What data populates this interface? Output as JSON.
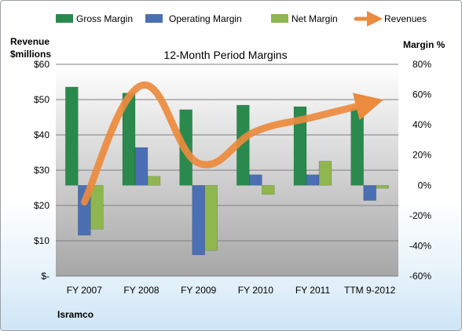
{
  "colors": {
    "gross_margin": "#2a8a4e",
    "operating_margin": "#4a6fb3",
    "net_margin": "#8fb64f",
    "revenues": "#ec8a3d",
    "plot_background_top": "#ffffff",
    "plot_background_bottom": "#a6a6a6"
  },
  "chart_data": {
    "type": "bar",
    "title": "12-Month Period Margins",
    "company": "Isramco",
    "y_left_label_line1": "Revenue",
    "y_left_label_line2": "$millions",
    "y_right_label": "Margin %",
    "categories": [
      "FY 2007",
      "FY 2008",
      "FY 2009",
      "FY 2010",
      "FY 2011",
      "TTM 9-2012"
    ],
    "left_axis": {
      "min": 0,
      "max": 60,
      "ticks": [
        0,
        10,
        20,
        30,
        40,
        50,
        60
      ],
      "tick_labels": [
        "$-",
        "$10",
        "$20",
        "$30",
        "$40",
        "$50",
        "$60"
      ]
    },
    "right_axis": {
      "min": -60,
      "max": 80,
      "ticks": [
        -60,
        -40,
        -20,
        0,
        20,
        40,
        60,
        80
      ],
      "tick_labels": [
        "-60%",
        "-40%",
        "-20%",
        "0%",
        "20%",
        "40%",
        "60%",
        "80%"
      ]
    },
    "grid": true,
    "legend_position": "top",
    "series": [
      {
        "name": "Gross Margin",
        "axis": "right",
        "kind": "bar",
        "values": [
          65,
          61,
          50,
          53,
          52,
          51
        ]
      },
      {
        "name": "Operating Margin",
        "axis": "right",
        "kind": "bar",
        "values": [
          -33,
          25,
          -46,
          7,
          7,
          -10
        ]
      },
      {
        "name": "Net Margin",
        "axis": "right",
        "kind": "bar",
        "values": [
          -29,
          6,
          -43,
          -6,
          16,
          -2
        ]
      },
      {
        "name": "Revenues",
        "axis": "left",
        "kind": "line",
        "values": [
          21,
          54,
          32,
          41,
          45,
          49
        ]
      }
    ]
  }
}
